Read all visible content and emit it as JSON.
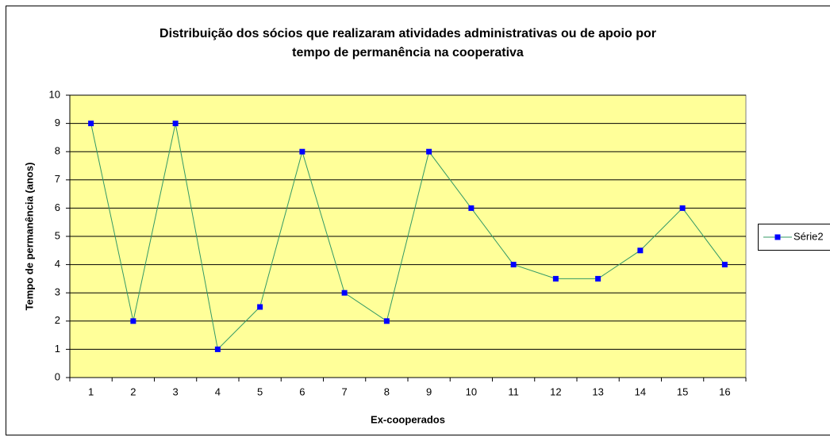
{
  "chart_data": {
    "type": "line",
    "title": [
      "Distribuição dos sócios que realizaram atividades administrativas ou de apoio por",
      "tempo de permanência na cooperativa"
    ],
    "xlabel": "Ex-cooperados",
    "ylabel": "Tempo de permanência (anos)",
    "categories": [
      "1",
      "2",
      "3",
      "4",
      "5",
      "6",
      "7",
      "8",
      "9",
      "10",
      "11",
      "12",
      "13",
      "14",
      "15",
      "16"
    ],
    "series": [
      {
        "name": "Série2",
        "color": "#339966",
        "marker_color": "#0000ff",
        "values": [
          9,
          2,
          9,
          1,
          2.5,
          8,
          3,
          2,
          8,
          6,
          4,
          3.5,
          3.5,
          4.5,
          6,
          4
        ]
      }
    ],
    "ylim": [
      0,
      10
    ],
    "yticks": [
      0,
      1,
      2,
      3,
      4,
      5,
      6,
      7,
      8,
      9,
      10
    ],
    "grid": true,
    "plot_background": "#ffff99",
    "legend": "right"
  }
}
